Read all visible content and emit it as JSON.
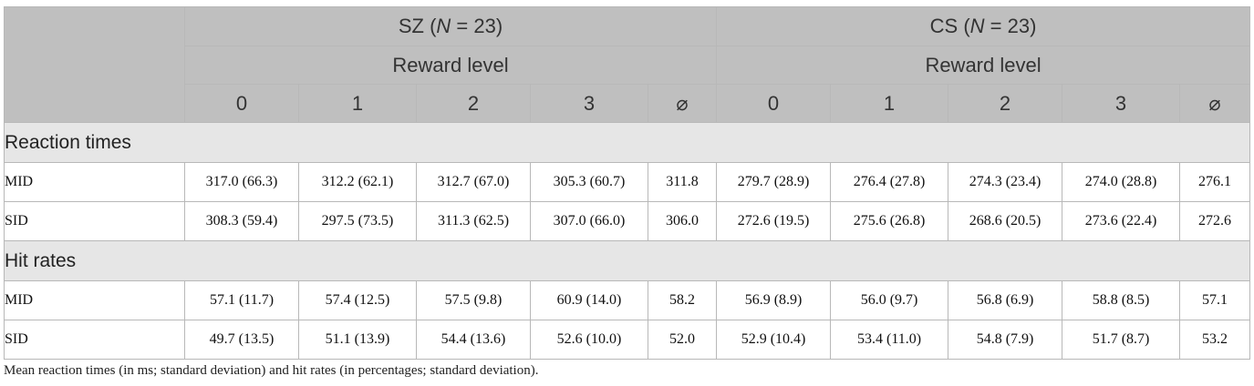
{
  "groups": [
    {
      "prefix": "SZ (",
      "n_sym": "N",
      "suffix": " = 23)",
      "subheader": "Reward level"
    },
    {
      "prefix": "CS (",
      "n_sym": "N",
      "suffix": " = 23)",
      "subheader": "Reward level"
    }
  ],
  "levels": [
    "0",
    "1",
    "2",
    "3",
    "⌀"
  ],
  "sections": [
    {
      "title": "Reaction times",
      "rows": [
        {
          "label": "MID",
          "cells": [
            "317.0 (66.3)",
            "312.2 (62.1)",
            "312.7 (67.0)",
            "305.3 (60.7)",
            "311.8",
            "279.7 (28.9)",
            "276.4 (27.8)",
            "274.3 (23.4)",
            "274.0 (28.8)",
            "276.1"
          ]
        },
        {
          "label": "SID",
          "cells": [
            "308.3 (59.4)",
            "297.5 (73.5)",
            "311.3 (62.5)",
            "307.0 (66.0)",
            "306.0",
            "272.6 (19.5)",
            "275.6 (26.8)",
            "268.6 (20.5)",
            "273.6 (22.4)",
            "272.6"
          ]
        }
      ]
    },
    {
      "title": "Hit rates",
      "rows": [
        {
          "label": "MID",
          "cells": [
            "57.1 (11.7)",
            "57.4 (12.5)",
            "57.5 (9.8)",
            "60.9 (14.0)",
            "58.2",
            "56.9 (8.9)",
            "56.0 (9.7)",
            "56.8 (6.9)",
            "58.8 (8.5)",
            "57.1"
          ]
        },
        {
          "label": "SID",
          "cells": [
            "49.7 (13.5)",
            "51.1 (13.9)",
            "54.4 (13.6)",
            "52.6 (10.0)",
            "52.0",
            "52.9 (10.4)",
            "53.4 (11.0)",
            "54.8 (7.9)",
            "51.7 (8.7)",
            "53.2"
          ]
        }
      ]
    }
  ],
  "caption": "Mean reaction times (in ms; standard deviation) and hit rates (in percentages; standard deviation)."
}
